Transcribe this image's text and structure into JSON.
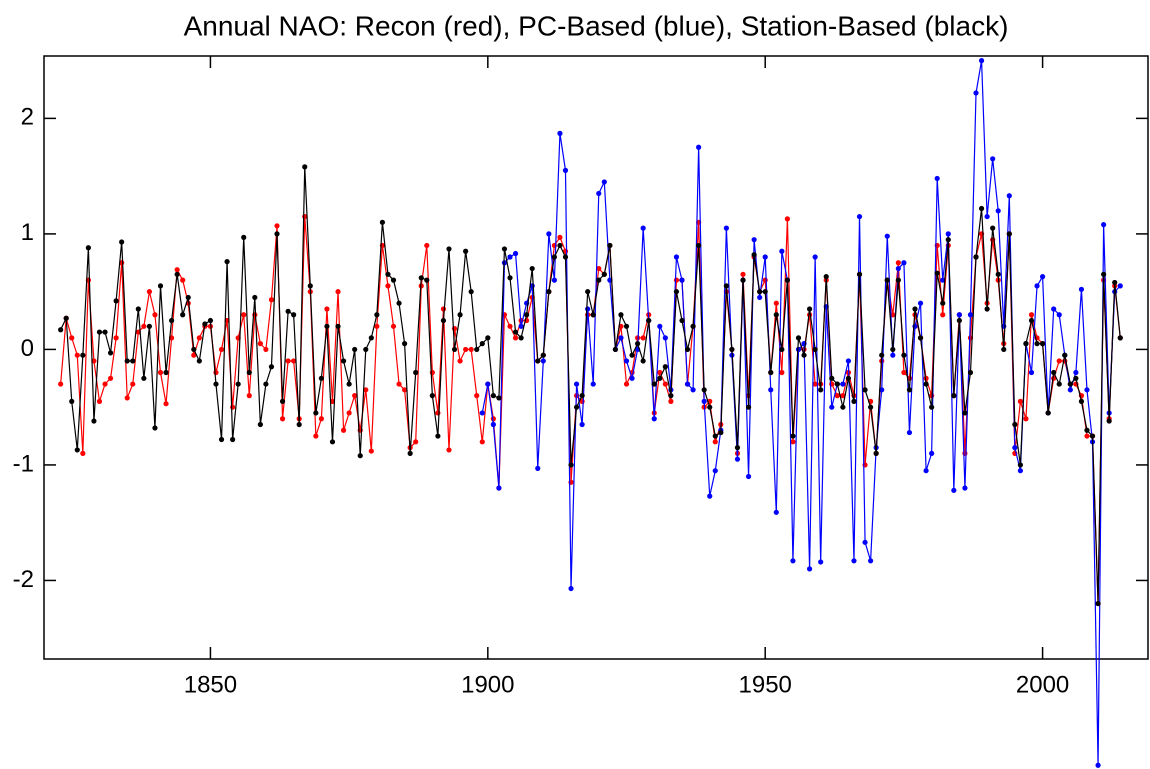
{
  "chart_data": {
    "type": "line",
    "title": "Annual NAO: Recon (red), PC-Based (blue), Station-Based (black)",
    "x": [
      1823,
      1824,
      1825,
      1826,
      1827,
      1828,
      1829,
      1830,
      1831,
      1832,
      1833,
      1834,
      1835,
      1836,
      1837,
      1838,
      1839,
      1840,
      1841,
      1842,
      1843,
      1844,
      1845,
      1846,
      1847,
      1848,
      1849,
      1850,
      1851,
      1852,
      1853,
      1854,
      1855,
      1856,
      1857,
      1858,
      1859,
      1860,
      1861,
      1862,
      1863,
      1864,
      1865,
      1866,
      1867,
      1868,
      1869,
      1870,
      1871,
      1872,
      1873,
      1874,
      1875,
      1876,
      1877,
      1878,
      1879,
      1880,
      1881,
      1882,
      1883,
      1884,
      1885,
      1886,
      1887,
      1888,
      1889,
      1890,
      1891,
      1892,
      1893,
      1894,
      1895,
      1896,
      1897,
      1898,
      1899,
      1900,
      1901,
      1902,
      1903,
      1904,
      1905,
      1906,
      1907,
      1908,
      1909,
      1910,
      1911,
      1912,
      1913,
      1914,
      1915,
      1916,
      1917,
      1918,
      1919,
      1920,
      1921,
      1922,
      1923,
      1924,
      1925,
      1926,
      1927,
      1928,
      1929,
      1930,
      1931,
      1932,
      1933,
      1934,
      1935,
      1936,
      1937,
      1938,
      1939,
      1940,
      1941,
      1942,
      1943,
      1944,
      1945,
      1946,
      1947,
      1948,
      1949,
      1950,
      1951,
      1952,
      1953,
      1954,
      1955,
      1956,
      1957,
      1958,
      1959,
      1960,
      1961,
      1962,
      1963,
      1964,
      1965,
      1966,
      1967,
      1968,
      1969,
      1970,
      1971,
      1972,
      1973,
      1974,
      1975,
      1976,
      1977,
      1978,
      1979,
      1980,
      1981,
      1982,
      1983,
      1984,
      1985,
      1986,
      1987,
      1988,
      1989,
      1990,
      1991,
      1992,
      1993,
      1994,
      1995,
      1996,
      1997,
      1998,
      1999,
      2000,
      2001,
      2002,
      2003,
      2004,
      2005,
      2006,
      2007,
      2008,
      2009,
      2010,
      2011,
      2012,
      2013,
      2014
    ],
    "series": [
      {
        "color": "#ff0000",
        "values": [
          -0.3,
          0.27,
          0.1,
          -0.05,
          -0.9,
          0.6,
          -0.1,
          -0.45,
          -0.3,
          -0.25,
          0.1,
          0.75,
          -0.42,
          -0.3,
          0.15,
          0.2,
          0.5,
          0.3,
          -0.2,
          -0.47,
          0.1,
          0.69,
          0.6,
          0.4,
          -0.05,
          0.1,
          0.2,
          0.2,
          -0.2,
          0.0,
          0.25,
          -0.5,
          0.1,
          0.3,
          -0.4,
          0.3,
          0.05,
          0.0,
          0.43,
          1.07,
          -0.6,
          -0.1,
          -0.1,
          -0.6,
          1.15,
          0.5,
          -0.75,
          -0.6,
          0.35,
          -0.45,
          0.5,
          -0.7,
          -0.55,
          -0.4,
          -0.7,
          -0.35,
          -0.88,
          0.2,
          0.9,
          0.55,
          0.2,
          -0.3,
          -0.35,
          -0.85,
          -0.8,
          0.55,
          0.9,
          -0.2,
          -0.55,
          0.35,
          -0.87,
          0.18,
          -0.1,
          0.0,
          0.0,
          -0.4,
          -0.8,
          -0.3,
          -0.6,
          -1.2,
          0.3,
          0.2,
          0.1,
          0.25,
          0.25,
          0.45,
          -0.1,
          -0.05,
          0.5,
          0.9,
          0.97,
          0.85,
          -1.15,
          -0.4,
          -0.45,
          0.3,
          0.3,
          0.7,
          0.65,
          0.9,
          0.0,
          0.2,
          -0.3,
          -0.2,
          0.1,
          0.1,
          0.3,
          -0.55,
          -0.2,
          -0.3,
          -0.45,
          0.6,
          0.6,
          -0.3,
          0.2,
          1.1,
          -0.5,
          -0.45,
          -0.8,
          -0.65,
          0.5,
          0.0,
          -0.9,
          0.65,
          -0.4,
          0.8,
          0.5,
          0.6,
          -0.2,
          0.4,
          -0.2,
          1.13,
          -0.8,
          0.0,
          0.0,
          0.3,
          -0.3,
          -0.3,
          0.6,
          -0.3,
          -0.4,
          -0.4,
          -0.2,
          -0.4,
          0.65,
          -1.0,
          -0.45,
          -0.9,
          -0.1,
          0.6,
          0.3,
          0.75,
          -0.2,
          -0.25,
          0.3,
          0.1,
          -0.25,
          -0.4,
          0.9,
          0.3,
          0.9,
          -0.4,
          0.3,
          -0.9,
          0.1,
          0.8,
          1.0,
          0.4,
          0.95,
          0.6,
          0.05,
          1.0,
          -0.9,
          -0.45,
          -0.6,
          0.3,
          0.1,
          0.05,
          -0.55,
          -0.25,
          -0.1,
          -0.1,
          -0.3,
          -0.3,
          -0.4,
          -0.75,
          -0.75,
          -2.2,
          0.6,
          -0.6,
          0.55,
          0.1
        ]
      },
      {
        "color": "#0000ff",
        "values": [
          null,
          null,
          null,
          null,
          null,
          null,
          null,
          null,
          null,
          null,
          null,
          null,
          null,
          null,
          null,
          null,
          null,
          null,
          null,
          null,
          null,
          null,
          null,
          null,
          null,
          null,
          null,
          null,
          null,
          null,
          null,
          null,
          null,
          null,
          null,
          null,
          null,
          null,
          null,
          null,
          null,
          null,
          null,
          null,
          null,
          null,
          null,
          null,
          null,
          null,
          null,
          null,
          null,
          null,
          null,
          null,
          null,
          null,
          null,
          null,
          null,
          null,
          null,
          null,
          null,
          null,
          null,
          null,
          null,
          null,
          null,
          null,
          null,
          null,
          null,
          null,
          -0.55,
          -0.3,
          -0.65,
          -1.2,
          0.75,
          0.8,
          0.83,
          0.2,
          0.4,
          0.55,
          -1.03,
          -0.1,
          1.0,
          0.6,
          1.87,
          1.55,
          -2.07,
          -0.3,
          -0.65,
          0.35,
          -0.3,
          1.35,
          1.45,
          0.6,
          0.0,
          0.1,
          -0.1,
          -0.25,
          0.0,
          1.05,
          0.25,
          -0.6,
          0.2,
          0.1,
          -0.35,
          0.8,
          0.6,
          -0.3,
          -0.35,
          1.75,
          -0.45,
          -1.27,
          -1.05,
          -0.7,
          1.05,
          -0.05,
          -0.95,
          0.6,
          -1.1,
          0.95,
          0.45,
          0.8,
          -0.35,
          -1.41,
          0.85,
          0.6,
          -1.83,
          0.0,
          0.05,
          -1.9,
          0.8,
          -1.84,
          0.37,
          -0.5,
          -0.3,
          -0.3,
          -0.1,
          -1.83,
          1.15,
          -1.67,
          -1.83,
          -0.85,
          -0.35,
          0.98,
          -0.05,
          0.7,
          0.75,
          -0.72,
          0.2,
          0.4,
          -1.05,
          -0.9,
          1.48,
          0.6,
          1.0,
          -1.22,
          0.3,
          -1.2,
          0.3,
          2.22,
          2.5,
          1.15,
          1.65,
          1.2,
          0.2,
          1.33,
          -0.85,
          -1.05,
          0.05,
          -0.2,
          0.55,
          0.63,
          -0.55,
          0.35,
          0.3,
          -0.05,
          -0.35,
          -0.2,
          0.52,
          -0.35,
          -0.8,
          -3.6,
          1.08,
          -0.55,
          0.5,
          0.55
        ]
      },
      {
        "color": "#000000",
        "values": [
          0.17,
          0.27,
          -0.45,
          -0.87,
          -0.05,
          0.88,
          -0.62,
          0.15,
          0.15,
          -0.03,
          0.42,
          0.93,
          -0.1,
          -0.1,
          0.35,
          -0.25,
          0.2,
          -0.68,
          0.55,
          -0.2,
          0.25,
          0.65,
          0.3,
          0.45,
          0.0,
          -0.1,
          0.22,
          0.25,
          -0.3,
          -0.78,
          0.76,
          -0.78,
          -0.3,
          0.97,
          -0.2,
          0.45,
          -0.65,
          -0.3,
          -0.15,
          1.0,
          -0.45,
          0.33,
          0.3,
          -0.65,
          1.58,
          0.55,
          -0.55,
          -0.25,
          0.2,
          -0.8,
          0.2,
          -0.1,
          -0.3,
          0.0,
          -0.92,
          0.0,
          0.1,
          0.3,
          1.1,
          0.65,
          0.6,
          0.4,
          0.05,
          -0.9,
          -0.2,
          0.62,
          0.6,
          -0.4,
          -0.75,
          0.25,
          0.87,
          0.0,
          0.3,
          0.85,
          0.5,
          0.0,
          0.05,
          0.1,
          -0.4,
          -0.42,
          0.87,
          0.62,
          0.15,
          0.1,
          0.3,
          0.7,
          -0.1,
          -0.05,
          0.5,
          0.8,
          0.9,
          0.8,
          -1.0,
          -0.5,
          -0.4,
          0.5,
          0.3,
          0.6,
          0.65,
          0.9,
          0.0,
          0.3,
          0.2,
          -0.05,
          0.05,
          -0.1,
          0.25,
          -0.3,
          -0.25,
          -0.15,
          -0.4,
          0.5,
          0.25,
          0.0,
          0.2,
          0.9,
          -0.35,
          -0.5,
          -0.75,
          -0.72,
          0.55,
          0.0,
          -0.85,
          0.6,
          -0.5,
          0.82,
          0.5,
          0.5,
          -0.2,
          0.3,
          0.0,
          0.6,
          -0.75,
          0.1,
          -0.05,
          0.35,
          0.0,
          -0.35,
          0.63,
          -0.25,
          -0.3,
          -0.5,
          -0.25,
          -0.45,
          0.65,
          -0.35,
          -0.5,
          -0.9,
          -0.05,
          0.6,
          0.0,
          0.6,
          -0.05,
          -0.35,
          0.35,
          0.1,
          -0.3,
          -0.5,
          0.66,
          0.4,
          0.95,
          -0.4,
          0.25,
          -0.55,
          -0.2,
          0.8,
          1.22,
          0.35,
          1.05,
          0.65,
          0.0,
          1.0,
          -0.65,
          -1.0,
          0.05,
          0.25,
          0.05,
          0.05,
          -0.55,
          -0.2,
          -0.3,
          -0.05,
          -0.3,
          -0.25,
          -0.45,
          -0.7,
          -0.75,
          -2.2,
          0.65,
          -0.62,
          0.58,
          0.1
        ]
      }
    ],
    "xlim": [
      1820,
      2019
    ],
    "xticks": [
      1850,
      1900,
      1950,
      2000
    ],
    "ylim": [
      -2.68,
      2.54
    ],
    "yticks": [
      -2,
      -1,
      0,
      1,
      2
    ],
    "grid": false
  }
}
